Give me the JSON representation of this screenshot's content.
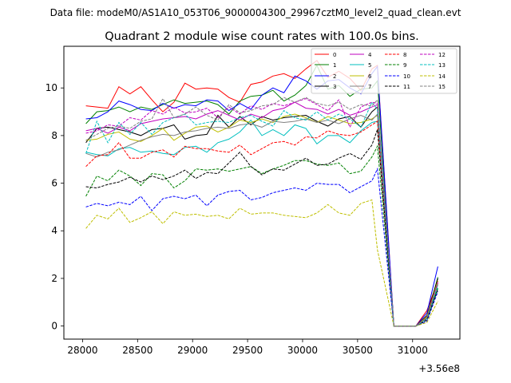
{
  "header": {
    "datafile": "Data file: modeM0/AS1A10_053T06_9000004300_29967cztM0_level2_quad_clean.evt"
  },
  "chart_data": {
    "type": "line",
    "title": "Quadrant 2 module wise count rates with 100.0s bins.",
    "xlabel": "",
    "ylabel": "",
    "offset_label": "+3.56e8",
    "xlim": [
      27830,
      31430
    ],
    "ylim": [
      -0.55,
      11.75
    ],
    "xticks": [
      28000,
      28500,
      29000,
      29500,
      30000,
      30500,
      31000
    ],
    "xtick_labels": [
      "28000",
      "28500",
      "29000",
      "29500",
      "30000",
      "30500",
      "31000"
    ],
    "yticks": [
      0,
      2,
      4,
      6,
      8,
      10
    ],
    "ytick_labels": [
      "0",
      "2",
      "4",
      "6",
      "8",
      "10"
    ],
    "x": [
      28030,
      28130,
      28230,
      28330,
      28430,
      28530,
      28630,
      28730,
      28830,
      28930,
      29030,
      29130,
      29230,
      29330,
      29430,
      29530,
      29630,
      29730,
      29830,
      29930,
      30030,
      30130,
      30230,
      30330,
      30430,
      30530,
      30630,
      30680,
      30830,
      30930,
      31030,
      31130,
      31230
    ],
    "legend": {
      "position": "top-right",
      "ncol": 4
    },
    "series": [
      {
        "name": "0",
        "color": "#ff0000",
        "dash": "solid",
        "values": [
          9.25,
          9.2,
          9.15,
          10.05,
          9.75,
          10.05,
          9.5,
          9.0,
          9.4,
          10.2,
          9.95,
          10.0,
          9.95,
          9.6,
          9.4,
          10.15,
          10.25,
          10.5,
          10.6,
          10.4,
          10.8,
          11.15,
          10.45,
          10.7,
          10.4,
          9.9,
          10.8,
          10.95,
          0.0,
          0.0,
          0.0,
          0.65,
          1.9
        ]
      },
      {
        "name": "1",
        "color": "#008000",
        "dash": "solid",
        "values": [
          8.5,
          9.0,
          9.05,
          9.2,
          9.0,
          9.2,
          9.1,
          9.3,
          9.5,
          9.35,
          9.4,
          9.45,
          9.3,
          8.9,
          9.45,
          9.65,
          9.7,
          9.9,
          9.45,
          9.7,
          10.1,
          10.95,
          9.95,
          10.1,
          9.65,
          9.95,
          10.0,
          10.3,
          0.0,
          0.0,
          0.0,
          0.4,
          2.05
        ]
      },
      {
        "name": "2",
        "color": "#0000ff",
        "dash": "solid",
        "values": [
          8.7,
          8.75,
          9.0,
          9.45,
          9.3,
          9.1,
          9.05,
          9.35,
          9.15,
          9.3,
          9.25,
          9.5,
          9.45,
          9.05,
          9.35,
          9.1,
          9.7,
          10.0,
          9.8,
          10.5,
          10.3,
          9.95,
          10.3,
          10.35,
          10.0,
          9.75,
          10.6,
          10.9,
          0.0,
          0.0,
          0.0,
          0.55,
          2.5
        ]
      },
      {
        "name": "3",
        "color": "#000000",
        "dash": "solid",
        "values": [
          7.7,
          8.3,
          8.35,
          8.25,
          8.15,
          8.0,
          8.25,
          8.3,
          8.45,
          7.85,
          8.0,
          8.05,
          8.85,
          8.35,
          8.8,
          8.45,
          8.8,
          8.65,
          8.75,
          8.8,
          8.85,
          8.6,
          8.4,
          8.7,
          8.8,
          8.35,
          9.0,
          9.2,
          0.0,
          0.0,
          0.0,
          0.45,
          2.0
        ]
      },
      {
        "name": "4",
        "color": "#bf00bf",
        "dash": "solid",
        "values": [
          8.2,
          8.3,
          8.1,
          8.35,
          8.2,
          8.5,
          8.6,
          8.7,
          8.75,
          8.8,
          8.7,
          8.9,
          9.05,
          8.85,
          8.65,
          8.9,
          8.75,
          9.05,
          9.15,
          9.4,
          9.15,
          9.1,
          8.9,
          9.1,
          8.85,
          9.0,
          9.2,
          9.3,
          0.0,
          0.0,
          0.0,
          0.35,
          1.8
        ]
      },
      {
        "name": "5",
        "color": "#00bfbf",
        "dash": "solid",
        "values": [
          7.3,
          7.2,
          7.15,
          7.45,
          7.5,
          7.3,
          7.35,
          7.25,
          7.2,
          7.5,
          7.55,
          7.3,
          7.7,
          7.85,
          8.15,
          8.65,
          8.0,
          8.25,
          8.0,
          8.45,
          8.3,
          7.65,
          8.0,
          8.0,
          7.7,
          8.2,
          8.55,
          8.6,
          0.0,
          0.0,
          0.0,
          0.3,
          1.55
        ]
      },
      {
        "name": "6",
        "color": "#bfbf00",
        "dash": "solid",
        "values": [
          7.8,
          7.85,
          8.05,
          8.15,
          7.85,
          7.75,
          8.0,
          8.3,
          7.8,
          8.1,
          8.35,
          8.4,
          8.15,
          8.35,
          8.65,
          8.55,
          8.7,
          8.55,
          8.8,
          8.9,
          8.75,
          8.55,
          8.8,
          8.65,
          8.5,
          8.55,
          8.7,
          8.85,
          0.0,
          0.0,
          0.0,
          0.4,
          1.9
        ]
      },
      {
        "name": "7",
        "color": "#808080",
        "dash": "solid",
        "values": [
          7.25,
          7.1,
          7.3,
          7.4,
          7.6,
          7.8,
          7.95,
          8.05,
          8.0,
          8.15,
          8.2,
          8.3,
          8.35,
          8.3,
          8.45,
          8.5,
          8.35,
          8.6,
          8.55,
          8.6,
          8.7,
          8.55,
          8.65,
          8.5,
          8.7,
          8.85,
          8.65,
          8.9,
          0.0,
          0.0,
          0.0,
          0.3,
          1.75
        ]
      },
      {
        "name": "8",
        "color": "#ff0000",
        "dash": "dashed",
        "values": [
          6.7,
          7.15,
          7.2,
          7.7,
          7.05,
          7.05,
          7.3,
          7.4,
          7.1,
          7.55,
          7.45,
          7.45,
          7.35,
          7.3,
          7.6,
          7.2,
          7.45,
          7.7,
          7.75,
          7.6,
          7.95,
          7.9,
          8.2,
          8.05,
          8.0,
          8.15,
          8.45,
          8.6,
          0.0,
          0.0,
          0.0,
          0.35,
          1.8
        ]
      },
      {
        "name": "9",
        "color": "#008000",
        "dash": "dashed",
        "values": [
          5.45,
          6.3,
          6.1,
          6.55,
          6.3,
          5.9,
          6.4,
          6.35,
          5.8,
          6.1,
          6.6,
          6.55,
          6.6,
          6.5,
          6.6,
          6.7,
          6.4,
          6.6,
          6.75,
          6.95,
          6.95,
          6.8,
          6.75,
          6.85,
          6.4,
          6.5,
          7.1,
          7.55,
          0.0,
          0.0,
          0.0,
          0.3,
          1.6
        ]
      },
      {
        "name": "10",
        "color": "#0000ff",
        "dash": "dashed",
        "values": [
          5.0,
          5.15,
          5.05,
          5.2,
          5.1,
          5.45,
          4.85,
          5.35,
          5.45,
          5.35,
          5.5,
          5.05,
          5.5,
          5.65,
          5.7,
          5.3,
          5.4,
          5.6,
          5.7,
          5.8,
          5.7,
          6.0,
          5.95,
          5.95,
          5.6,
          5.85,
          6.1,
          6.6,
          0.0,
          0.0,
          0.0,
          0.2,
          1.45
        ]
      },
      {
        "name": "11",
        "color": "#000000",
        "dash": "dashed",
        "values": [
          5.85,
          5.8,
          5.95,
          6.05,
          6.25,
          6.05,
          6.3,
          6.15,
          6.3,
          6.55,
          6.2,
          6.45,
          6.4,
          6.85,
          7.3,
          6.7,
          6.35,
          6.6,
          6.55,
          6.8,
          7.05,
          6.75,
          6.8,
          7.05,
          7.25,
          7.0,
          7.6,
          8.25,
          0.0,
          0.0,
          0.0,
          0.25,
          1.55
        ]
      },
      {
        "name": "12",
        "color": "#bf00bf",
        "dash": "dashed",
        "values": [
          8.1,
          8.2,
          8.45,
          8.4,
          8.75,
          8.65,
          9.05,
          8.9,
          9.2,
          8.95,
          9.0,
          9.15,
          8.75,
          9.2,
          8.9,
          9.25,
          9.1,
          9.35,
          9.25,
          9.4,
          9.55,
          9.3,
          9.05,
          9.5,
          8.35,
          9.2,
          9.4,
          9.35,
          0.0,
          0.0,
          0.0,
          0.35,
          1.85
        ]
      },
      {
        "name": "13",
        "color": "#00bfbf",
        "dash": "dashed",
        "values": [
          7.25,
          8.6,
          7.7,
          8.55,
          8.05,
          8.55,
          8.05,
          8.55,
          8.75,
          8.9,
          8.45,
          8.55,
          8.6,
          8.55,
          8.75,
          8.85,
          8.6,
          8.4,
          9.05,
          8.75,
          8.65,
          9.0,
          8.65,
          8.9,
          8.7,
          8.35,
          9.4,
          9.1,
          0.0,
          0.0,
          0.0,
          0.3,
          1.7
        ]
      },
      {
        "name": "14",
        "color": "#bfbf00",
        "dash": "dashed",
        "values": [
          4.1,
          4.65,
          4.5,
          4.95,
          4.35,
          4.55,
          4.8,
          4.3,
          4.8,
          4.65,
          4.7,
          4.6,
          4.65,
          4.5,
          4.95,
          4.7,
          4.75,
          4.75,
          4.65,
          4.6,
          4.55,
          4.75,
          5.1,
          4.75,
          4.65,
          5.15,
          5.3,
          3.2,
          0.0,
          0.0,
          0.0,
          0.15,
          1.05
        ]
      },
      {
        "name": "15",
        "color": "#808080",
        "dash": "dashed",
        "values": [
          7.8,
          8.05,
          8.3,
          8.4,
          8.3,
          8.6,
          8.7,
          9.55,
          8.75,
          8.9,
          9.2,
          8.85,
          8.65,
          9.3,
          8.95,
          9.05,
          9.25,
          9.3,
          9.6,
          9.4,
          9.6,
          9.35,
          9.25,
          9.4,
          9.1,
          9.3,
          9.25,
          9.5,
          0.0,
          0.0,
          0.0,
          0.35,
          1.8
        ]
      }
    ]
  }
}
